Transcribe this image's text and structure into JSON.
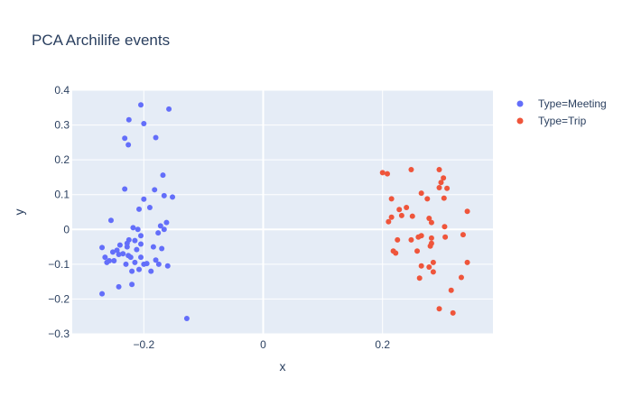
{
  "chart_data": {
    "type": "scatter",
    "title": "PCA Archilife events",
    "xlabel": "x",
    "ylabel": "y",
    "xlim": [
      -0.32,
      0.385
    ],
    "ylim": [
      -0.3,
      0.4
    ],
    "xticks": [
      -0.2,
      0,
      0.2
    ],
    "xtick_labels": [
      "−0.2",
      "0",
      "0.2"
    ],
    "yticks": [
      -0.3,
      -0.2,
      -0.1,
      0,
      0.1,
      0.2,
      0.3,
      0.4
    ],
    "ytick_labels": [
      "−0.3",
      "−0.2",
      "−0.1",
      "0",
      "0.1",
      "0.2",
      "0.3",
      "0.4"
    ],
    "grid": true,
    "legend_position": "top-right",
    "background_color": "#e5ecf6",
    "series": [
      {
        "name": "Type=Meeting",
        "color": "#636efa",
        "points": [
          [
            -0.205,
            0.358
          ],
          [
            -0.158,
            0.346
          ],
          [
            -0.225,
            0.315
          ],
          [
            -0.2,
            0.304
          ],
          [
            -0.232,
            0.262
          ],
          [
            -0.18,
            0.264
          ],
          [
            -0.226,
            0.243
          ],
          [
            -0.168,
            0.156
          ],
          [
            -0.232,
            0.116
          ],
          [
            -0.182,
            0.114
          ],
          [
            -0.152,
            0.093
          ],
          [
            -0.166,
            0.097
          ],
          [
            -0.2,
            0.087
          ],
          [
            -0.208,
            0.058
          ],
          [
            -0.19,
            0.063
          ],
          [
            -0.255,
            0.026
          ],
          [
            -0.162,
            0.02
          ],
          [
            -0.172,
            0.01
          ],
          [
            -0.218,
            0.005
          ],
          [
            -0.21,
            0.0
          ],
          [
            -0.166,
            0.0
          ],
          [
            -0.176,
            -0.01
          ],
          [
            -0.205,
            -0.018
          ],
          [
            -0.225,
            -0.03
          ],
          [
            -0.215,
            -0.032
          ],
          [
            -0.228,
            -0.04
          ],
          [
            -0.205,
            -0.042
          ],
          [
            -0.24,
            -0.045
          ],
          [
            -0.228,
            -0.05
          ],
          [
            -0.212,
            -0.058
          ],
          [
            -0.184,
            -0.05
          ],
          [
            -0.17,
            -0.055
          ],
          [
            -0.245,
            -0.06
          ],
          [
            -0.27,
            -0.052
          ],
          [
            -0.252,
            -0.065
          ],
          [
            -0.235,
            -0.07
          ],
          [
            -0.226,
            -0.075
          ],
          [
            -0.242,
            -0.072
          ],
          [
            -0.265,
            -0.08
          ],
          [
            -0.258,
            -0.09
          ],
          [
            -0.262,
            -0.095
          ],
          [
            -0.25,
            -0.09
          ],
          [
            -0.222,
            -0.08
          ],
          [
            -0.205,
            -0.08
          ],
          [
            -0.18,
            -0.088
          ],
          [
            -0.23,
            -0.1
          ],
          [
            -0.215,
            -0.095
          ],
          [
            -0.2,
            -0.1
          ],
          [
            -0.195,
            -0.098
          ],
          [
            -0.175,
            -0.1
          ],
          [
            -0.16,
            -0.105
          ],
          [
            -0.22,
            -0.12
          ],
          [
            -0.188,
            -0.12
          ],
          [
            -0.208,
            -0.115
          ],
          [
            -0.22,
            -0.158
          ],
          [
            -0.242,
            -0.165
          ],
          [
            -0.27,
            -0.185
          ],
          [
            -0.128,
            -0.256
          ]
        ]
      },
      {
        "name": "Type=Trip",
        "color": "#ef553b",
        "points": [
          [
            0.2,
            0.163
          ],
          [
            0.208,
            0.16
          ],
          [
            0.248,
            0.172
          ],
          [
            0.295,
            0.172
          ],
          [
            0.302,
            0.148
          ],
          [
            0.298,
            0.135
          ],
          [
            0.295,
            0.12
          ],
          [
            0.308,
            0.118
          ],
          [
            0.265,
            0.104
          ],
          [
            0.303,
            0.09
          ],
          [
            0.275,
            0.088
          ],
          [
            0.215,
            0.088
          ],
          [
            0.24,
            0.063
          ],
          [
            0.228,
            0.057
          ],
          [
            0.342,
            0.052
          ],
          [
            0.232,
            0.04
          ],
          [
            0.25,
            0.038
          ],
          [
            0.215,
            0.035
          ],
          [
            0.278,
            0.032
          ],
          [
            0.21,
            0.022
          ],
          [
            0.282,
            0.02
          ],
          [
            0.304,
            0.008
          ],
          [
            0.335,
            -0.015
          ],
          [
            0.265,
            -0.018
          ],
          [
            0.26,
            -0.022
          ],
          [
            0.305,
            -0.022
          ],
          [
            0.282,
            -0.025
          ],
          [
            0.225,
            -0.03
          ],
          [
            0.248,
            -0.03
          ],
          [
            0.282,
            -0.04
          ],
          [
            0.28,
            -0.048
          ],
          [
            0.258,
            -0.062
          ],
          [
            0.218,
            -0.062
          ],
          [
            0.222,
            -0.068
          ],
          [
            0.285,
            -0.095
          ],
          [
            0.342,
            -0.095
          ],
          [
            0.265,
            -0.105
          ],
          [
            0.278,
            -0.108
          ],
          [
            0.285,
            -0.122
          ],
          [
            0.332,
            -0.138
          ],
          [
            0.262,
            -0.14
          ],
          [
            0.315,
            -0.175
          ],
          [
            0.295,
            -0.228
          ],
          [
            0.318,
            -0.24
          ]
        ]
      }
    ]
  }
}
